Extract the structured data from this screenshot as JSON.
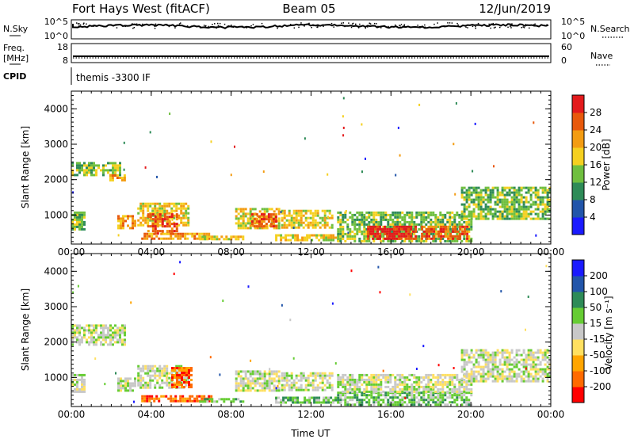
{
  "header": {
    "station": "Fort Hays West (fitACF)",
    "beam": "Beam 05",
    "date": "12/Jun/2019"
  },
  "params": {
    "nsky_label": "N.Sky",
    "nsky_ticks": [
      "10^5",
      "10^0"
    ],
    "nsearch_label": "N.Search",
    "nsearch_ticks": [
      "10^5",
      "10^0"
    ],
    "freq_label_1": "Freq.",
    "freq_label_2": "[MHz]",
    "freq_ticks": [
      "18",
      "8"
    ],
    "nave_label": "Nave",
    "nave_ticks": [
      "60",
      "0"
    ],
    "cpid_label": "CPID",
    "cpid_value": "themis -3300 IF"
  },
  "colors": {
    "power": [
      "#1a1aff",
      "#2255aa",
      "#2e8b57",
      "#6fbf3f",
      "#f5d020",
      "#f39c12",
      "#e8590c",
      "#e31a1c"
    ],
    "velocity": [
      "#ff0000",
      "#ff6a00",
      "#ffa500",
      "#ffe060",
      "#c8c8c8",
      "#66cc33",
      "#2e8b57",
      "#2255aa",
      "#1a1aff"
    ]
  },
  "chart_data": [
    {
      "type": "heatmap",
      "quantity": "Power",
      "xlabel": "",
      "ylabel": "Slant Range [km]",
      "colorbar_label": "Power [dB]",
      "colorbar_ticks": [
        "28",
        "24",
        "20",
        "16",
        "12",
        "8",
        "4"
      ],
      "x_ticks": [
        "00:00",
        "04:00",
        "08:00",
        "12:00",
        "16:00",
        "20:00",
        "00:00"
      ],
      "y_ticks": [
        "1000",
        "2000",
        "3000",
        "4000"
      ],
      "xlim_hours": [
        0,
        24
      ],
      "ylim_km": [
        180,
        4500
      ],
      "regions": [
        {
          "t0": 0.0,
          "t1": 0.6,
          "r0": 600,
          "r1": 1100,
          "level": 3
        },
        {
          "t0": 0.0,
          "t1": 2.4,
          "r0": 2100,
          "r1": 2500,
          "level": 3
        },
        {
          "t0": 1.9,
          "t1": 2.7,
          "r0": 1950,
          "r1": 2150,
          "level": 5
        },
        {
          "t0": 2.3,
          "t1": 3.2,
          "r0": 650,
          "r1": 1000,
          "level": 5
        },
        {
          "t0": 3.3,
          "t1": 5.8,
          "r0": 700,
          "r1": 1350,
          "level": 4
        },
        {
          "t0": 3.8,
          "t1": 5.3,
          "r0": 500,
          "r1": 1050,
          "level": 6
        },
        {
          "t0": 3.5,
          "t1": 7.0,
          "r0": 300,
          "r1": 500,
          "level": 5
        },
        {
          "t0": 6.4,
          "t1": 8.6,
          "r0": 300,
          "r1": 420,
          "level": 4
        },
        {
          "t0": 8.2,
          "t1": 10.4,
          "r0": 600,
          "r1": 1200,
          "level": 4
        },
        {
          "t0": 9.0,
          "t1": 10.2,
          "r0": 700,
          "r1": 1050,
          "level": 6
        },
        {
          "t0": 10.2,
          "t1": 13.5,
          "r0": 300,
          "r1": 460,
          "level": 4
        },
        {
          "t0": 10.5,
          "t1": 13.0,
          "r0": 650,
          "r1": 1150,
          "level": 4
        },
        {
          "t0": 13.3,
          "t1": 20.0,
          "r0": 250,
          "r1": 1100,
          "level": 3
        },
        {
          "t0": 14.8,
          "t1": 17.2,
          "r0": 350,
          "r1": 700,
          "level": 7
        },
        {
          "t0": 17.5,
          "t1": 19.8,
          "r0": 350,
          "r1": 700,
          "level": 6
        },
        {
          "t0": 19.5,
          "t1": 24.0,
          "r0": 900,
          "r1": 1800,
          "level": 3
        }
      ]
    },
    {
      "type": "heatmap",
      "quantity": "Velocity",
      "xlabel": "Time UT",
      "ylabel": "Slant Range [km]",
      "colorbar_label": "Velocity [m s⁻¹]",
      "colorbar_ticks": [
        "200",
        "100",
        "50",
        "15",
        "-15",
        "-50",
        "-100",
        "-200"
      ],
      "x_ticks": [
        "00:00",
        "04:00",
        "08:00",
        "12:00",
        "16:00",
        "20:00",
        "00:00"
      ],
      "y_ticks": [
        "1000",
        "2000",
        "3000",
        "4000"
      ],
      "xlim_hours": [
        0,
        24
      ],
      "ylim_km": [
        180,
        4500
      ],
      "regions": [
        {
          "t0": 0.0,
          "t1": 0.6,
          "r0": 600,
          "r1": 1100,
          "level": 4
        },
        {
          "t0": 0.0,
          "t1": 2.7,
          "r0": 1950,
          "r1": 2500,
          "level": 4
        },
        {
          "t0": 2.3,
          "t1": 3.2,
          "r0": 650,
          "r1": 1000,
          "level": 4
        },
        {
          "t0": 3.3,
          "t1": 5.8,
          "r0": 700,
          "r1": 1350,
          "level": 4
        },
        {
          "t0": 5.0,
          "t1": 6.0,
          "r0": 700,
          "r1": 1300,
          "level": 1
        },
        {
          "t0": 3.5,
          "t1": 7.0,
          "r0": 300,
          "r1": 500,
          "level": 1
        },
        {
          "t0": 6.4,
          "t1": 8.6,
          "r0": 300,
          "r1": 420,
          "level": 5
        },
        {
          "t0": 8.2,
          "t1": 10.4,
          "r0": 600,
          "r1": 1200,
          "level": 4
        },
        {
          "t0": 10.2,
          "t1": 13.5,
          "r0": 300,
          "r1": 460,
          "level": 5
        },
        {
          "t0": 10.5,
          "t1": 13.0,
          "r0": 650,
          "r1": 1150,
          "level": 4
        },
        {
          "t0": 13.3,
          "t1": 20.0,
          "r0": 250,
          "r1": 600,
          "level": 5
        },
        {
          "t0": 13.3,
          "t1": 20.0,
          "r0": 600,
          "r1": 1100,
          "level": 4
        },
        {
          "t0": 19.5,
          "t1": 24.0,
          "r0": 900,
          "r1": 1800,
          "level": 4
        }
      ]
    }
  ]
}
